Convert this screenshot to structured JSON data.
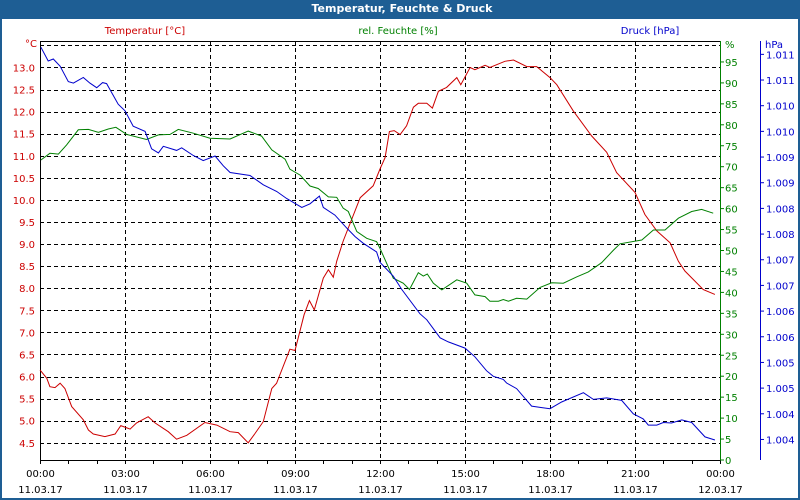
{
  "window": {
    "title": "Temperatur, Feuchte & Druck"
  },
  "chart_data": {
    "type": "line",
    "title": "Temperatur, Feuchte & Druck",
    "x_unit": "hours since 11.03.17 00:00",
    "xlim": [
      0,
      24
    ],
    "x_ticks": [
      {
        "time": "00:00",
        "date": "11.03.17"
      },
      {
        "time": "03:00",
        "date": "11.03.17"
      },
      {
        "time": "06:00",
        "date": "11.03.17"
      },
      {
        "time": "09:00",
        "date": "11.03.17"
      },
      {
        "time": "12:00",
        "date": "11.03.17"
      },
      {
        "time": "15:00",
        "date": "11.03.17"
      },
      {
        "time": "18:00",
        "date": "11.03.17"
      },
      {
        "time": "21:00",
        "date": "11.03.17"
      },
      {
        "time": "00:00",
        "date": "12.03.17"
      }
    ],
    "grid": true,
    "axes": {
      "temperature": {
        "legend": "Temperatur [°C]",
        "unit": "°C",
        "ylim": [
          4.11,
          13.6
        ],
        "color": "#cc0000",
        "ticks": [
          "13.0",
          "12.5",
          "12.0",
          "11.5",
          "11.0",
          "10.5",
          "10.0",
          "9.5",
          "9.0",
          "8.5",
          "8.0",
          "7.5",
          "7.0",
          "6.5",
          "6.0",
          "5.5",
          "5.0",
          "4.5"
        ]
      },
      "humidity": {
        "legend": "rel. Feuchte [%]",
        "unit": "%",
        "ylim": [
          0,
          100
        ],
        "color": "#008000",
        "ticks": [
          "95",
          "90",
          "85",
          "80",
          "75",
          "70",
          "65",
          "60",
          "55",
          "50",
          "45",
          "40",
          "35",
          "30",
          "25",
          "20",
          "15",
          "10",
          "5",
          "0"
        ]
      },
      "pressure": {
        "legend": "Druck [hPa]",
        "unit": "hPa",
        "ylim": [
          1.0031,
          1.01126
        ],
        "color": "#0000cc",
        "ticks": [
          "1.011",
          "1.011",
          "1.010",
          "1.010",
          "1.009",
          "1.009",
          "1.008",
          "1.008",
          "1.007",
          "1.007",
          "1.006",
          "1.006",
          "1.005",
          "1.005",
          "1.004",
          "1.004"
        ]
      }
    },
    "series": [
      {
        "name": "Temperatur",
        "axis": "temperature",
        "color": "#cc0000",
        "x": [
          0,
          0.24,
          0.35,
          0.53,
          0.71,
          0.88,
          1.12,
          1.53,
          1.71,
          1.88,
          2.29,
          2.65,
          2.85,
          3.18,
          3.41,
          3.82,
          4.06,
          4.53,
          4.82,
          5.18,
          5.82,
          6.24,
          6.71,
          7.0,
          7.35,
          7.59,
          7.88,
          8.18,
          8.35,
          8.82,
          9.0,
          9.32,
          9.51,
          9.68,
          10.0,
          10.18,
          10.35,
          10.47,
          10.7,
          11.3,
          11.76,
          12.0,
          12.18,
          12.33,
          12.5,
          12.71,
          12.94,
          13.18,
          13.35,
          13.65,
          13.85,
          14.06,
          14.35,
          14.71,
          14.85,
          15.18,
          15.35,
          15.71,
          15.88,
          16.41,
          16.71,
          17.18,
          17.53,
          18.0,
          18.24,
          18.82,
          19.47,
          20.0,
          20.35,
          21.0,
          21.35,
          21.77,
          22.24,
          22.53,
          22.76,
          23.41,
          23.82
        ],
        "y": [
          6.15,
          5.96,
          5.77,
          5.75,
          5.85,
          5.73,
          5.32,
          5.02,
          4.79,
          4.7,
          4.64,
          4.7,
          4.89,
          4.81,
          4.95,
          5.09,
          4.95,
          4.75,
          4.58,
          4.67,
          4.96,
          4.9,
          4.75,
          4.73,
          4.5,
          4.71,
          4.98,
          5.73,
          5.85,
          6.62,
          6.59,
          7.4,
          7.72,
          7.51,
          8.23,
          8.42,
          8.25,
          8.61,
          9.07,
          10.05,
          10.32,
          10.7,
          10.96,
          11.55,
          11.57,
          11.48,
          11.68,
          12.1,
          12.19,
          12.19,
          12.08,
          12.46,
          12.55,
          12.77,
          12.61,
          13.0,
          12.95,
          13.05,
          13.0,
          13.14,
          13.17,
          13.02,
          13.02,
          12.77,
          12.61,
          12.02,
          11.45,
          11.08,
          10.62,
          10.17,
          9.67,
          9.3,
          9.03,
          8.61,
          8.39,
          7.97,
          7.86
        ]
      },
      {
        "name": "rel. Feuchte",
        "axis": "humidity",
        "color": "#008000",
        "x": [
          0.03,
          0.35,
          0.65,
          0.94,
          1.35,
          1.71,
          2.06,
          2.41,
          2.68,
          3.06,
          3.76,
          4.18,
          4.59,
          4.88,
          5.41,
          6.0,
          6.71,
          7.35,
          7.82,
          8.18,
          8.65,
          8.82,
          9.18,
          9.53,
          9.82,
          10.18,
          10.47,
          10.7,
          10.88,
          11.18,
          11.53,
          11.88,
          12.0,
          12.47,
          12.82,
          13.04,
          13.35,
          13.53,
          13.67,
          13.88,
          14.18,
          14.71,
          15.06,
          15.35,
          15.71,
          15.88,
          16.18,
          16.35,
          16.53,
          16.82,
          17.18,
          17.65,
          18.06,
          18.47,
          18.94,
          19.35,
          19.82,
          20.24,
          20.47,
          21.06,
          21.24,
          21.65,
          22.06,
          22.53,
          23.0,
          23.35,
          23.76
        ],
        "y": [
          71.6,
          73.2,
          73.0,
          75.2,
          78.8,
          78.9,
          78.2,
          79.0,
          79.4,
          77.7,
          76.5,
          77.6,
          77.7,
          78.9,
          78.0,
          76.8,
          76.6,
          78.5,
          77.3,
          74.0,
          71.8,
          69.4,
          68.0,
          65.4,
          64.8,
          62.8,
          62.7,
          60.1,
          59.3,
          54.5,
          52.9,
          52.1,
          50.5,
          43.4,
          42.2,
          40.7,
          44.7,
          43.9,
          44.4,
          42.2,
          40.6,
          43.0,
          42.2,
          39.4,
          39.0,
          37.9,
          37.9,
          38.3,
          37.9,
          38.6,
          38.4,
          41.2,
          42.3,
          42.2,
          43.7,
          44.9,
          47.1,
          50.1,
          51.6,
          52.3,
          52.5,
          54.9,
          54.9,
          57.7,
          59.3,
          59.8,
          58.9
        ]
      },
      {
        "name": "Druck",
        "axis": "pressure",
        "color": "#0000cc",
        "x": [
          0.03,
          0.29,
          0.47,
          0.71,
          1.0,
          1.18,
          1.53,
          1.76,
          2.0,
          2.21,
          2.35,
          2.76,
          3.0,
          3.29,
          3.71,
          3.94,
          4.18,
          4.35,
          4.82,
          5.0,
          5.41,
          5.76,
          6.18,
          6.47,
          6.71,
          7.41,
          7.88,
          8.35,
          8.71,
          9.24,
          9.53,
          9.86,
          10.0,
          10.41,
          10.82,
          11.12,
          11.41,
          11.88,
          12.0,
          12.47,
          12.77,
          13.41,
          13.65,
          14.12,
          14.41,
          15.0,
          15.35,
          15.76,
          16.0,
          16.35,
          16.47,
          16.82,
          17.35,
          17.71,
          18.0,
          18.41,
          19.18,
          19.53,
          20.0,
          20.53,
          20.94,
          21.29,
          21.47,
          21.77,
          22.0,
          22.29,
          22.65,
          23.0,
          23.47,
          23.82
        ],
        "y": [
          1.01114,
          1.01087,
          1.01091,
          1.01077,
          1.01047,
          1.01044,
          1.01055,
          1.01044,
          1.01035,
          1.01045,
          1.01043,
          1.01003,
          1.0099,
          1.0096,
          1.0095,
          1.00916,
          1.00908,
          1.00921,
          1.00913,
          1.00918,
          1.00903,
          1.00893,
          1.00902,
          1.00883,
          1.0087,
          1.00864,
          1.00846,
          1.00833,
          1.00819,
          1.00802,
          1.00809,
          1.00824,
          1.00802,
          1.00787,
          1.00762,
          1.00745,
          1.00732,
          1.00715,
          1.00695,
          1.00668,
          1.00642,
          1.00595,
          1.00583,
          1.00548,
          1.0054,
          1.00528,
          1.00511,
          1.00484,
          1.00473,
          1.00467,
          1.0046,
          1.00449,
          1.00415,
          1.00412,
          1.0041,
          1.00423,
          1.00441,
          1.00428,
          1.00431,
          1.00426,
          1.004,
          1.0039,
          1.00378,
          1.00378,
          1.00383,
          1.00382,
          1.00388,
          1.00383,
          1.00355,
          1.00349
        ]
      }
    ]
  }
}
